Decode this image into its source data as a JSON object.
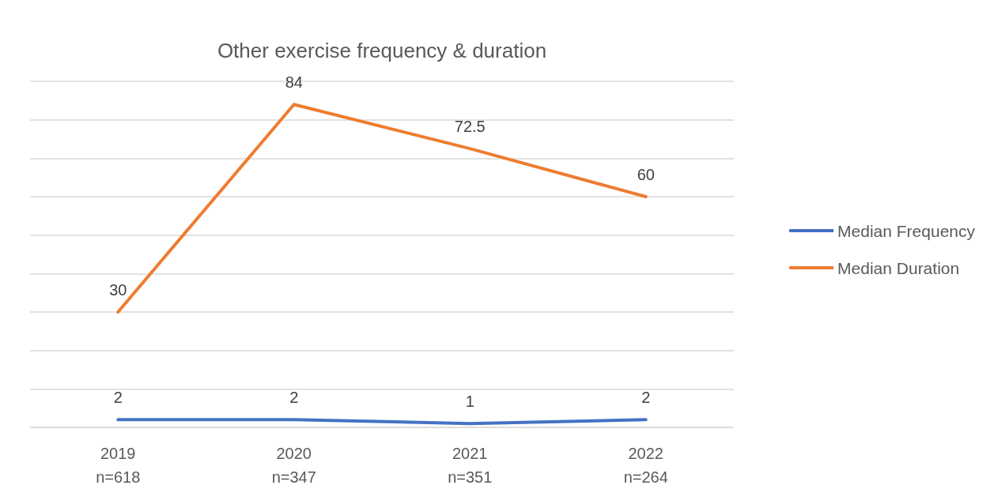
{
  "chart_data": {
    "type": "line",
    "title": "Other exercise frequency & duration",
    "categories": [
      "2019\nn=618",
      "2020\nn=347",
      "2021\nn=351",
      "2022\nn=264"
    ],
    "series": [
      {
        "name": "Median Frequency",
        "color": "#4472c4",
        "values": [
          2,
          2,
          1,
          2
        ]
      },
      {
        "name": "Median Duration",
        "color": "#ed7d31",
        "values": [
          30,
          84,
          72.5,
          60
        ]
      }
    ],
    "ylim": [
      0,
      90
    ],
    "yticks": [
      {
        "value": 0,
        "label": null
      },
      {
        "value": 10,
        "label": null
      },
      {
        "value": 20,
        "label": null
      },
      {
        "value": 30,
        "label": null
      },
      {
        "value": 40,
        "label": null
      },
      {
        "value": 50,
        "label": null
      },
      {
        "value": 60,
        "label": null
      },
      {
        "value": 70,
        "label": null
      },
      {
        "value": 80,
        "label": null
      },
      {
        "value": 90,
        "label": null
      }
    ],
    "tick_labels": "x",
    "grid": "y",
    "legend": "right",
    "data_labels": true,
    "marker": "none",
    "line_style": "solid"
  }
}
